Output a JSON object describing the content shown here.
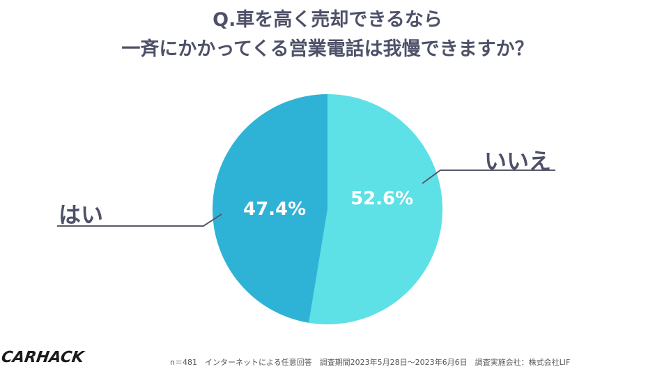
{
  "chart_data": {
    "type": "pie",
    "title_lines": [
      "Q.車を高く売却できるなら",
      "一斉にかかってくる営業電話は我慢できますか？"
    ],
    "slices": [
      {
        "label": "いいえ",
        "value": 52.6,
        "value_label": "52.6%",
        "color": "#5de0e6"
      },
      {
        "label": "はい",
        "value": 47.4,
        "value_label": "47.4%",
        "color": "#2eb3d6"
      }
    ],
    "start": "12 o'clock",
    "direction": "clockwise",
    "leader_color": "#555a6a"
  },
  "logo": {
    "text": "CARHACK"
  },
  "footer": {
    "text": "n＝481　インターネットによる任意回答　調査期間2023年5月28日～2023年6月6日　調査実施会社：株式会社LIF"
  }
}
